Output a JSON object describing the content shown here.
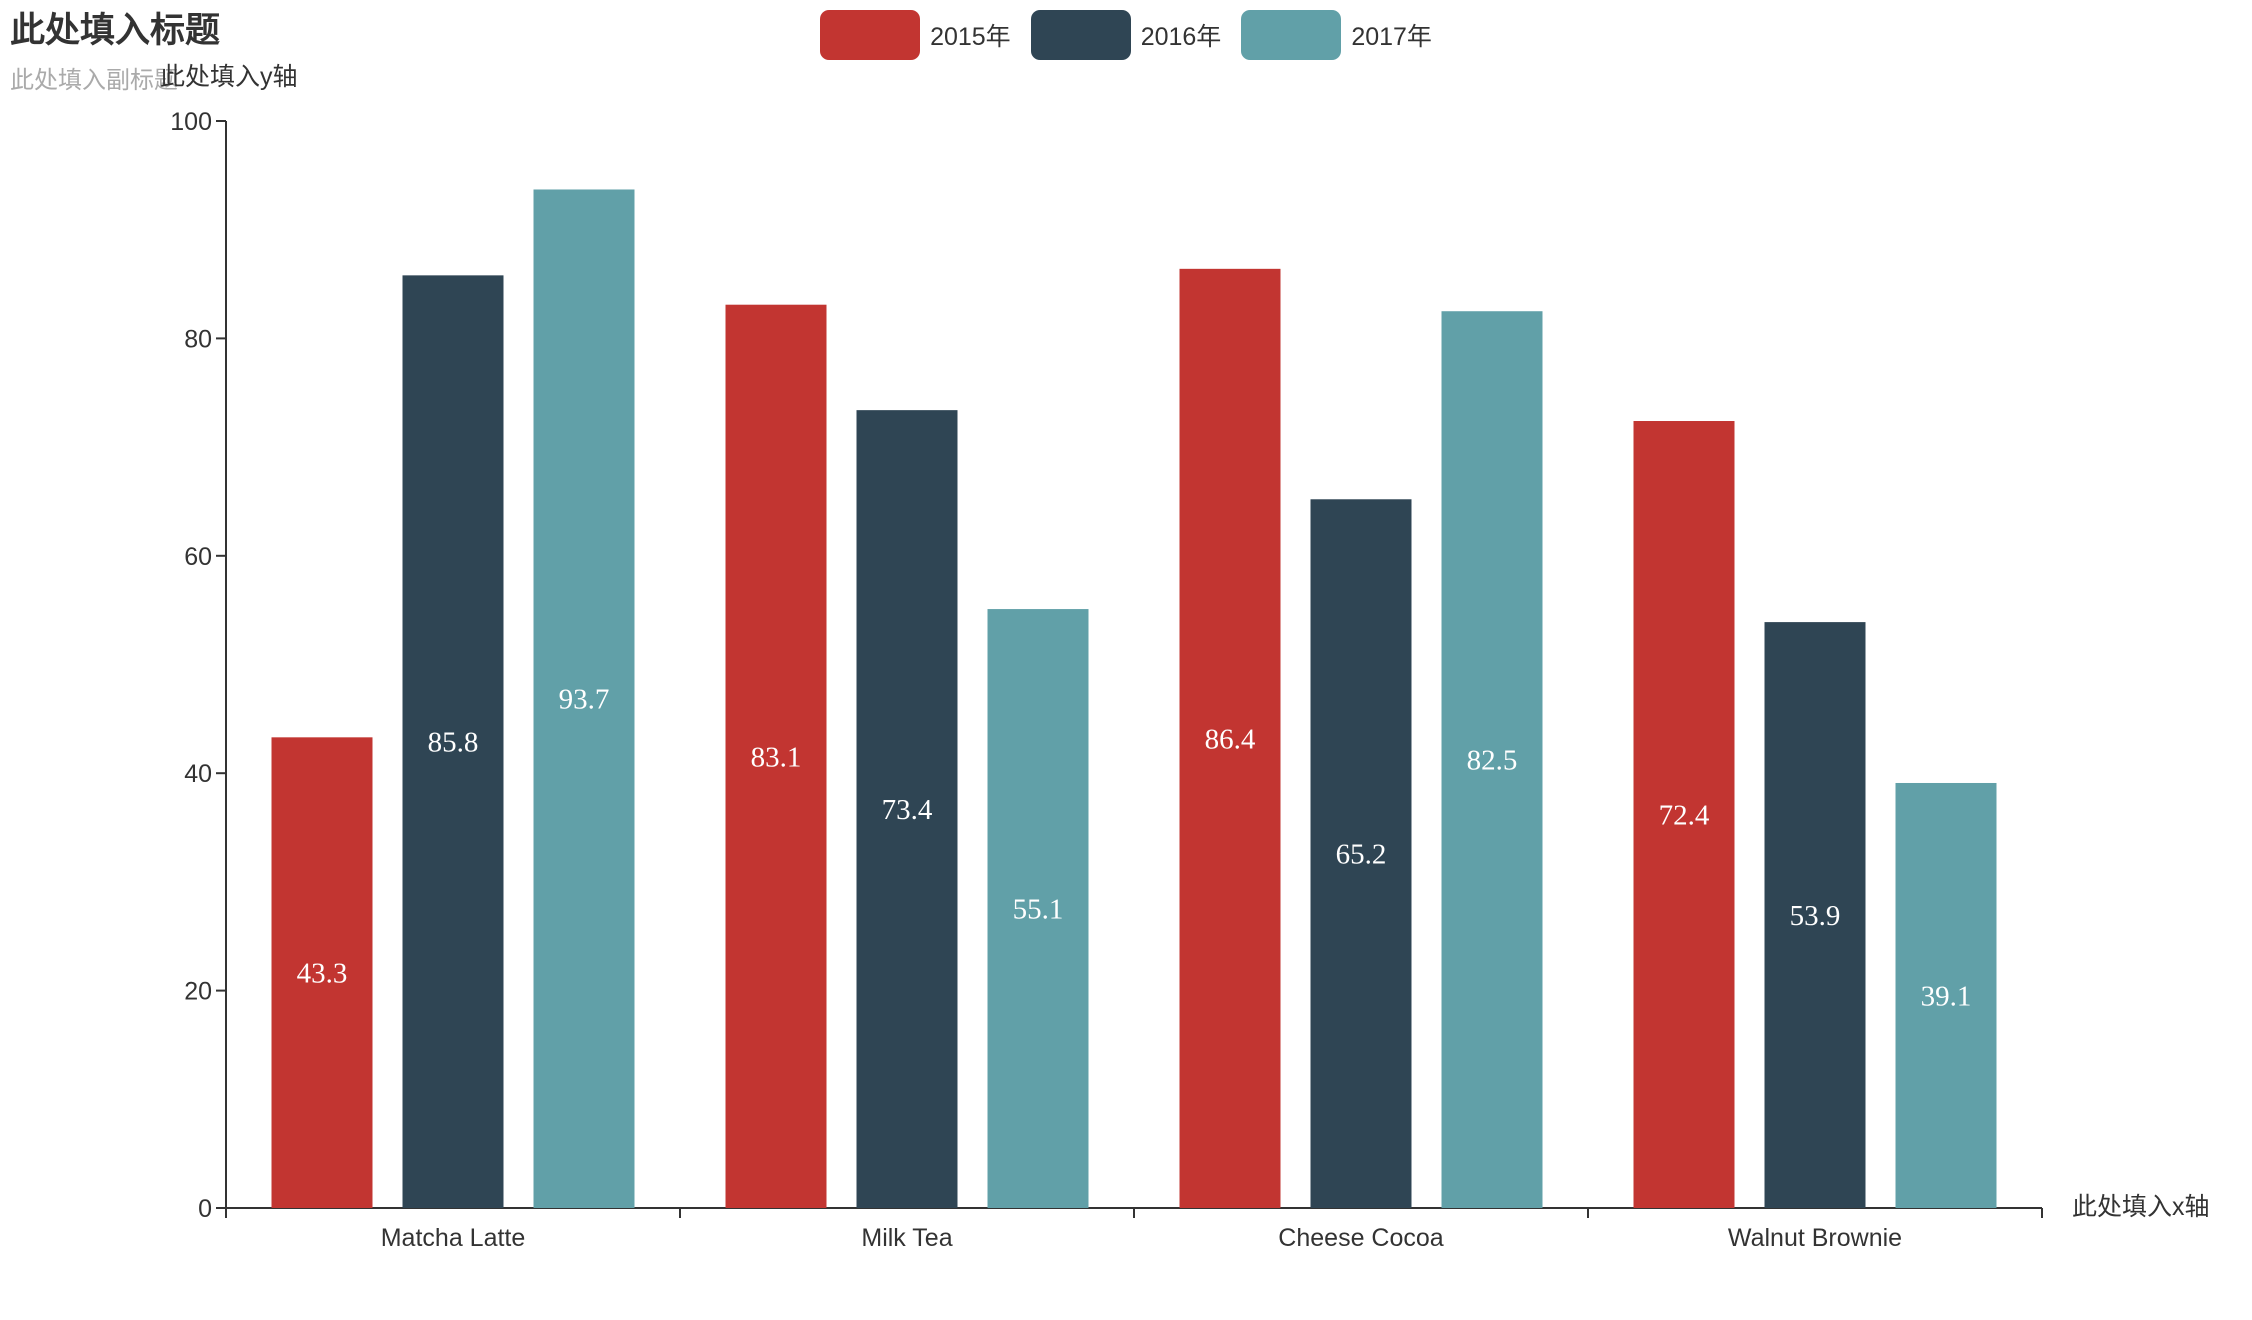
{
  "chart_data": {
    "type": "bar",
    "title": "此处填入标题",
    "subtitle": "此处填入副标题",
    "xlabel": "此处填入x轴",
    "ylabel": "此处填入y轴",
    "categories": [
      "Matcha Latte",
      "Milk Tea",
      "Cheese Cocoa",
      "Walnut Brownie"
    ],
    "series": [
      {
        "name": "2015年",
        "color": "#c23531",
        "values": [
          43.3,
          83.1,
          86.4,
          72.4
        ]
      },
      {
        "name": "2016年",
        "color": "#2f4554",
        "values": [
          85.8,
          73.4,
          65.2,
          53.9
        ]
      },
      {
        "name": "2017年",
        "color": "#61a0a8",
        "values": [
          93.7,
          55.1,
          82.5,
          39.1
        ]
      }
    ],
    "ylim": [
      0,
      100
    ],
    "yticks": [
      0,
      20,
      40,
      60,
      80,
      100
    ],
    "grid": false,
    "legend_position": "top-center",
    "data_labels": true
  }
}
